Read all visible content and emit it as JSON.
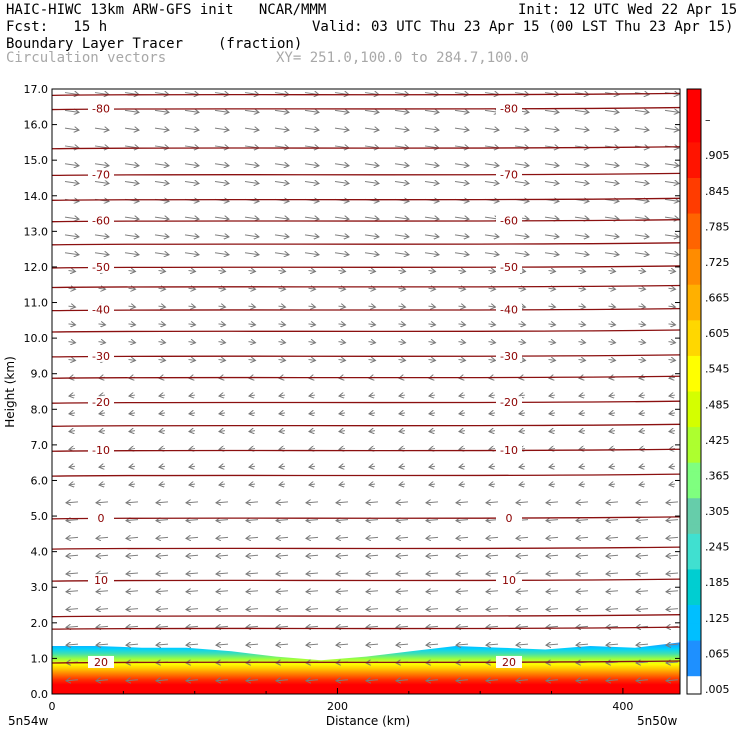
{
  "header": {
    "title_left": "HAIC-HIWC 13km ARW-GFS init   NCAR/MMM",
    "init": "Init: 12 UTC Wed 22 Apr 15",
    "fcst": "Fcst:   15 h",
    "valid": "Valid: 03 UTC Thu 23 Apr 15 (00 LST Thu 23 Apr 15)",
    "field_name": "Boundary Layer Tracer",
    "field_units": "(fraction)",
    "overlay_name": "Circulation vectors",
    "xy_range": "XY= 251.0,100.0 to 284.7,100.0"
  },
  "chart_data": {
    "type": "heatmap",
    "title": "Boundary Layer Tracer",
    "xlabel": "Distance (km)",
    "ylabel": "Height (km)",
    "xlim": [
      0,
      440
    ],
    "ylim": [
      0,
      17
    ],
    "x_ticks": [
      "0",
      "200",
      "400"
    ],
    "x_tick_values": [
      0,
      200,
      400
    ],
    "y_ticks": [
      "0.0",
      "1.0",
      "2.0",
      "3.0",
      "4.0",
      "5.0",
      "6.0",
      "7.0",
      "8.0",
      "9.0",
      "10.0",
      "11.0",
      "12.0",
      "13.0",
      "14.0",
      "15.0",
      "16.0",
      "17.0"
    ],
    "x_end_labels": [
      "5n54w",
      "5n50w"
    ],
    "colorbar": {
      "labels": [
        ".005",
        ".065",
        ".125",
        ".185",
        ".245",
        ".305",
        ".365",
        ".425",
        ".485",
        ".545",
        ".605",
        ".665",
        ".725",
        ".785",
        ".845",
        ".905",
        "–"
      ],
      "colors": [
        "#ffffff",
        "#1e90ff",
        "#00bfff",
        "#00ced1",
        "#40e0d0",
        "#66cdaa",
        "#7fff7f",
        "#adff2f",
        "#d4ff00",
        "#ffff00",
        "#ffd700",
        "#ffb000",
        "#ff8c00",
        "#ff6400",
        "#ff3c00",
        "#ff1400",
        "#ff0000"
      ]
    },
    "bl_top_km": [
      1.35,
      1.35,
      1.3,
      1.3,
      1.2,
      1.05,
      0.95,
      1.05,
      1.2,
      1.35,
      1.3,
      1.25,
      1.35,
      1.3,
      1.45
    ],
    "temperature_contours": [
      {
        "label": "-80",
        "height_km": 16.45
      },
      {
        "label": "-70",
        "height_km": 14.6
      },
      {
        "label": "-60",
        "height_km": 13.3
      },
      {
        "label": "-50",
        "height_km": 12.0
      },
      {
        "label": "-40",
        "height_km": 10.8
      },
      {
        "label": "-30",
        "height_km": 9.5
      },
      {
        "label": "-20",
        "height_km": 8.2
      },
      {
        "label": "-10",
        "height_km": 6.85
      },
      {
        "label": "0",
        "height_km": 4.95
      },
      {
        "label": "10",
        "height_km": 3.2
      },
      {
        "label": "20",
        "height_km": 0.9
      }
    ],
    "extra_contours_km": [
      16.85,
      15.35,
      13.9,
      12.65,
      11.45,
      10.2,
      8.9,
      7.55,
      6.15,
      4.1,
      2.2,
      1.85
    ]
  }
}
